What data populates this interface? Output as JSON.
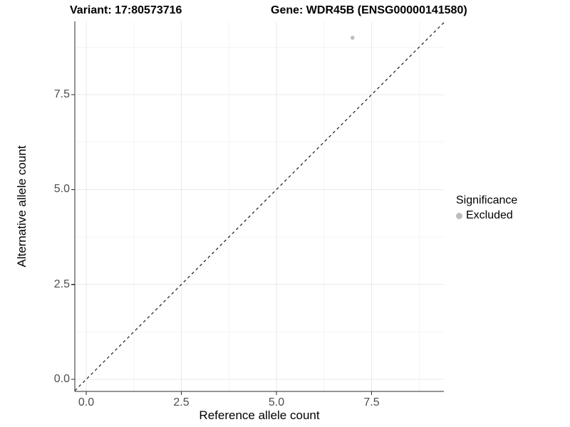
{
  "chart_data": {
    "type": "scatter",
    "title_left": "Variant: 17:80573716",
    "title_right": "Gene: WDR45B (ENSG00000141580)",
    "xlabel": "Reference allele count",
    "ylabel": "Alternative allele count",
    "x_tick_labels": [
      "0.0",
      "2.5",
      "5.0",
      "7.5"
    ],
    "x_tick_values": [
      0,
      2.5,
      5,
      7.5
    ],
    "y_tick_labels": [
      "0.0",
      "2.5",
      "5.0",
      "7.5"
    ],
    "y_tick_values": [
      0,
      2.5,
      5,
      7.5
    ],
    "xlim": [
      -0.3,
      9.4
    ],
    "ylim": [
      -0.3,
      9.43
    ],
    "grid": {
      "major": true,
      "minor": true
    },
    "identity_line": {
      "slope": 1,
      "intercept": 0,
      "style": "dashed",
      "color": "#1a1a1a"
    },
    "points": [
      {
        "x": 7,
        "y": 9,
        "significance": "Excluded"
      }
    ],
    "legend": {
      "title": "Significance",
      "position": "right",
      "items": [
        {
          "label": "Excluded",
          "color": "#bdbdbd",
          "marker": "circle"
        }
      ]
    },
    "style": {
      "grid_major_color": "#e9e9e9",
      "grid_minor_color": "#f4f4f4",
      "axis_color": "#2b2b2b",
      "tick_label_color": "#4d4d4d",
      "point_color": "#bdbdbd",
      "background": "#ffffff"
    }
  }
}
